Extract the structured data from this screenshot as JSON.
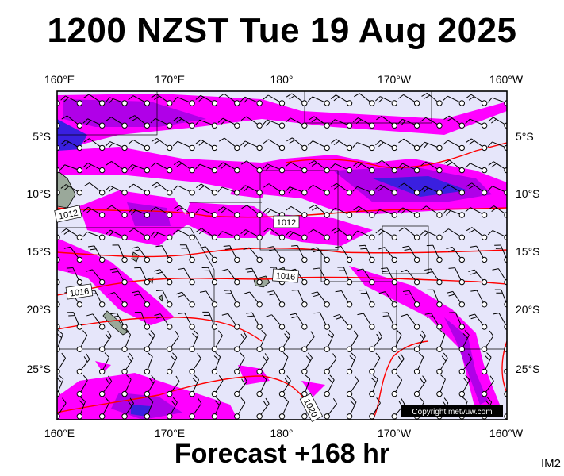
{
  "title": "1200 NZST Tue 19 Aug 2025",
  "footer": "Forecast +168 hr",
  "image_code": "IM2",
  "copyright": "Copyright metvuw.com",
  "top_labels": [
    "160°E",
    "170°E",
    "180°",
    "170°W",
    "160°W"
  ],
  "bottom_labels": [
    "160°E",
    "170°E",
    "180°",
    "170°W",
    "160°W"
  ],
  "left_labels": [
    "5°S",
    "10°S",
    "15°S",
    "20°S",
    "25°S"
  ],
  "right_labels": [
    "5°S",
    "10°S",
    "15°S",
    "20°S",
    "25°S"
  ],
  "isobar_labels": [
    "1012",
    "1012",
    "1016",
    "1016",
    "1020"
  ],
  "colors": {
    "background": "#e6e6fa",
    "rain_light": "#ff00ff",
    "rain_medium": "#b000e8",
    "rain_heavy": "#3a1fe0",
    "isobar": "#ff0000",
    "land": "#9aa89a"
  }
}
